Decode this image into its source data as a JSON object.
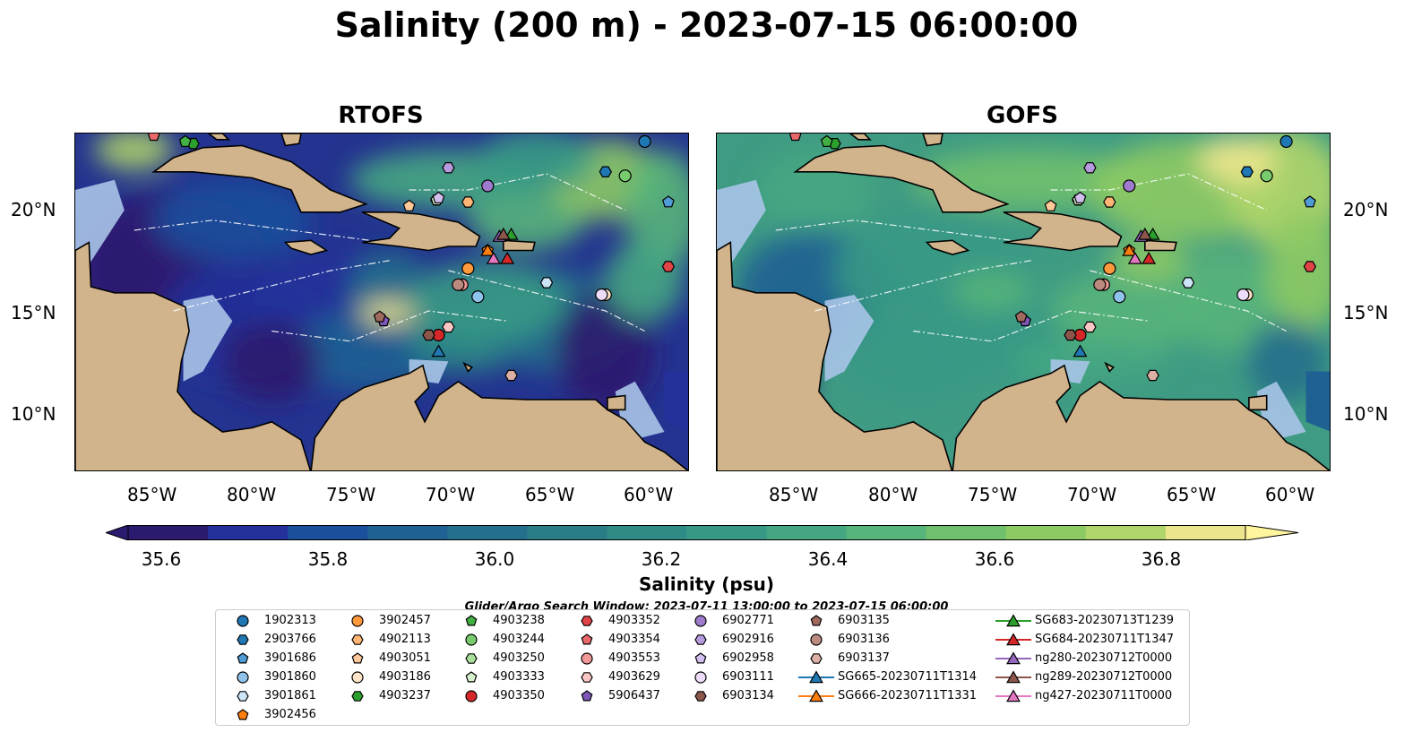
{
  "title": "Salinity (200 m) - 2023-07-15 06:00:00",
  "panels": [
    {
      "title": "RTOFS",
      "scheme": "low"
    },
    {
      "title": "GOFS",
      "scheme": "high"
    }
  ],
  "lon_labels": [
    "85°W",
    "80°W",
    "75°W",
    "70°W",
    "65°W",
    "60°W"
  ],
  "lat_labels": [
    "20°N",
    "15°N",
    "10°N"
  ],
  "colorbar": {
    "label": "Salinity (psu)",
    "ticks": [
      "35.6",
      "35.8",
      "36.0",
      "36.2",
      "36.4",
      "36.6",
      "36.8"
    ],
    "colors": [
      "#2b1a6e",
      "#24319a",
      "#1b4f9c",
      "#1e6192",
      "#236f8c",
      "#2a7d87",
      "#2f8b85",
      "#379985",
      "#45a782",
      "#57b47a",
      "#70c06d",
      "#8dca64",
      "#b0d56a",
      "#ece58d"
    ]
  },
  "search_window": "Glider/Argo Search Window: 2023-07-11 13:00:00 to 2023-07-15 06:00:00",
  "legend": {
    "columns": [
      [
        {
          "label": "1902313",
          "shape": "circle",
          "color": "#1f77b4"
        },
        {
          "label": "2903766",
          "shape": "hexagon",
          "color": "#1f77b4"
        },
        {
          "label": "3901686",
          "shape": "pentagon",
          "color": "#4f9bd6"
        },
        {
          "label": "3901860",
          "shape": "circle",
          "color": "#8fc3ec"
        },
        {
          "label": "3901861",
          "shape": "hexagon",
          "color": "#cde6f7"
        },
        {
          "label": "3902456",
          "shape": "pentagon",
          "color": "#ff7f0e"
        }
      ],
      [
        {
          "label": "3902457",
          "shape": "circle",
          "color": "#ff9a3c"
        },
        {
          "label": "4902113",
          "shape": "hexagon",
          "color": "#ffb574"
        },
        {
          "label": "4903051",
          "shape": "pentagon",
          "color": "#ffc99a"
        },
        {
          "label": "4903186",
          "shape": "circle",
          "color": "#ffe4c8"
        },
        {
          "label": "4903237",
          "shape": "hexagon",
          "color": "#2ca02c"
        }
      ],
      [
        {
          "label": "4903238",
          "shape": "pentagon",
          "color": "#43b043"
        },
        {
          "label": "4903244",
          "shape": "circle",
          "color": "#79cc6e"
        },
        {
          "label": "4903250",
          "shape": "hexagon",
          "color": "#a8e09b"
        },
        {
          "label": "4903333",
          "shape": "pentagon",
          "color": "#d6f2cd"
        },
        {
          "label": "4903350",
          "shape": "circle",
          "color": "#d62728"
        }
      ],
      [
        {
          "label": "4903352",
          "shape": "hexagon",
          "color": "#e04446"
        },
        {
          "label": "4903354",
          "shape": "pentagon",
          "color": "#ea6a6b"
        },
        {
          "label": "4903553",
          "shape": "circle",
          "color": "#f29896"
        },
        {
          "label": "4903629",
          "shape": "hexagon",
          "color": "#fbc7c4"
        },
        {
          "label": "5906437",
          "shape": "pentagon",
          "color": "#7e57b8"
        }
      ],
      [
        {
          "label": "6902771",
          "shape": "circle",
          "color": "#9e7bcc"
        },
        {
          "label": "6902916",
          "shape": "hexagon",
          "color": "#b89ade"
        },
        {
          "label": "6902958",
          "shape": "pentagon",
          "color": "#d3bfee"
        },
        {
          "label": "6903111",
          "shape": "circle",
          "color": "#ecdcf9"
        },
        {
          "label": "6903134",
          "shape": "hexagon",
          "color": "#8c564b"
        }
      ],
      [
        {
          "label": "6903135",
          "shape": "pentagon",
          "color": "#a06a5e"
        },
        {
          "label": "6903136",
          "shape": "circle",
          "color": "#bc8a7e"
        },
        {
          "label": "6903137",
          "shape": "hexagon",
          "color": "#dcb0a4"
        },
        {
          "label": "SG665-20230711T1314",
          "shape": "triangle",
          "color": "#1f77b4"
        },
        {
          "label": "SG666-20230711T1331",
          "shape": "triangle",
          "color": "#ff7f0e"
        }
      ],
      [
        {
          "label": "SG683-20230713T1239",
          "shape": "triangle",
          "color": "#2ca02c"
        },
        {
          "label": "SG684-20230711T1347",
          "shape": "triangle",
          "color": "#d62728"
        },
        {
          "label": "ng280-20230712T0000",
          "shape": "triangle",
          "color": "#9467bd"
        },
        {
          "label": "ng289-20230712T0000",
          "shape": "triangle",
          "color": "#8c564b"
        },
        {
          "label": "ng427-20230711T0000",
          "shape": "triangle",
          "color": "#e377c2"
        }
      ]
    ]
  },
  "map_markers": [
    {
      "label": "1902313",
      "lon": -60.0,
      "lat": 23.4
    },
    {
      "label": "2903766",
      "lon": -62.0,
      "lat": 21.9
    },
    {
      "label": "3901686",
      "lon": -58.8,
      "lat": 20.4
    },
    {
      "label": "3901860",
      "lon": -68.5,
      "lat": 15.7
    },
    {
      "label": "3901861",
      "lon": -65.0,
      "lat": 16.4
    },
    {
      "label": "3902456",
      "lon": -68.0,
      "lat": 18.0
    },
    {
      "label": "3902457",
      "lon": -69.0,
      "lat": 17.1
    },
    {
      "label": "4902113",
      "lon": -69.0,
      "lat": 20.4
    },
    {
      "label": "4903051",
      "lon": -72.0,
      "lat": 20.2
    },
    {
      "label": "4903186",
      "lon": -62.0,
      "lat": 15.8
    },
    {
      "label": "4903237",
      "lon": -83.0,
      "lat": 23.3
    },
    {
      "label": "4903238",
      "lon": -83.4,
      "lat": 23.4
    },
    {
      "label": "4903244",
      "lon": -61.0,
      "lat": 21.7
    },
    {
      "label": "4903250",
      "lon": -70.6,
      "lat": 20.5
    },
    {
      "label": "4903333",
      "lon": -70.6,
      "lat": 20.5
    },
    {
      "label": "4903350",
      "lon": -70.5,
      "lat": 13.8
    },
    {
      "label": "4903352",
      "lon": -58.8,
      "lat": 17.2
    },
    {
      "label": "4903354",
      "lon": -85.0,
      "lat": 23.7
    },
    {
      "label": "4903553",
      "lon": -69.3,
      "lat": 16.3
    },
    {
      "label": "4903629",
      "lon": -70.0,
      "lat": 14.2
    },
    {
      "label": "5906437",
      "lon": -73.3,
      "lat": 14.5
    },
    {
      "label": "6902771",
      "lon": -68.0,
      "lat": 21.2
    },
    {
      "label": "6902916",
      "lon": -70.0,
      "lat": 22.1
    },
    {
      "label": "6902958",
      "lon": -70.5,
      "lat": 20.6
    },
    {
      "label": "6903111",
      "lon": -62.2,
      "lat": 15.8
    },
    {
      "label": "6903134",
      "lon": -71.0,
      "lat": 13.8
    },
    {
      "label": "6903135",
      "lon": -73.5,
      "lat": 14.7
    },
    {
      "label": "6903136",
      "lon": -69.5,
      "lat": 16.3
    },
    {
      "label": "6903137",
      "lon": -66.8,
      "lat": 11.8
    },
    {
      "label": "SG665-20230711T1314",
      "lon": -70.5,
      "lat": 13.0
    },
    {
      "label": "SG666-20230711T1331",
      "lon": -68.0,
      "lat": 18.0
    },
    {
      "label": "SG683-20230713T1239",
      "lon": -66.8,
      "lat": 18.8
    },
    {
      "label": "SG684-20230711T1347",
      "lon": -67.0,
      "lat": 17.6
    },
    {
      "label": "ng280-20230712T0000",
      "lon": -67.4,
      "lat": 18.7
    },
    {
      "label": "ng289-20230712T0000",
      "lon": -67.2,
      "lat": 18.8
    },
    {
      "label": "ng427-20230711T0000",
      "lon": -67.7,
      "lat": 17.6
    }
  ]
}
